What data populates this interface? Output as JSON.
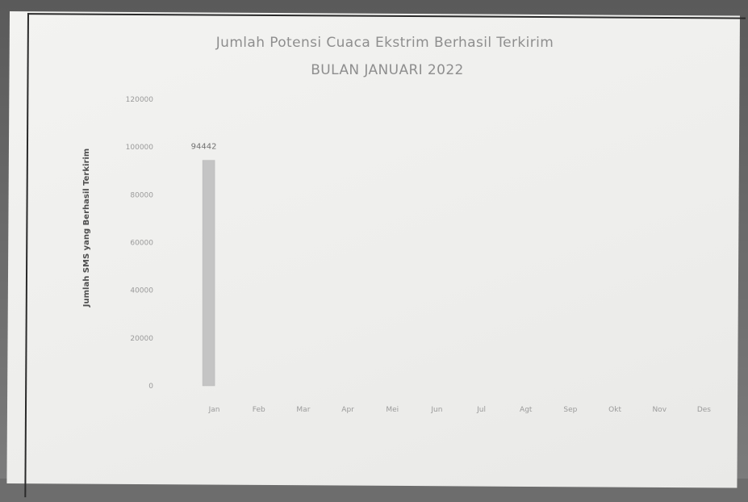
{
  "chart_data": {
    "type": "bar",
    "title": "Jumlah Potensi Cuaca Ekstrim Berhasil Terkirim",
    "subtitle": "BULAN JANUARI 2022",
    "xlabel": "",
    "ylabel": "Jumlah SMS yang Berhasil Terkirim",
    "categories": [
      "Jan",
      "Feb",
      "Mar",
      "Apr",
      "Mei",
      "Jun",
      "Jul",
      "Agt",
      "Sep",
      "Okt",
      "Nov",
      "Des"
    ],
    "values": [
      94442,
      null,
      null,
      null,
      null,
      null,
      null,
      null,
      null,
      null,
      null,
      null
    ],
    "data_labels": [
      "94442",
      "",
      "",
      "",
      "",
      "",
      "",
      "",
      "",
      "",
      "",
      ""
    ],
    "y_ticks": [
      0,
      20000,
      40000,
      60000,
      80000,
      100000,
      120000
    ],
    "ylim": [
      0,
      120000
    ],
    "grid": false,
    "legend": "none",
    "colors": {
      "bar": "#c4c4c4",
      "text": "#8a8a8a"
    }
  }
}
